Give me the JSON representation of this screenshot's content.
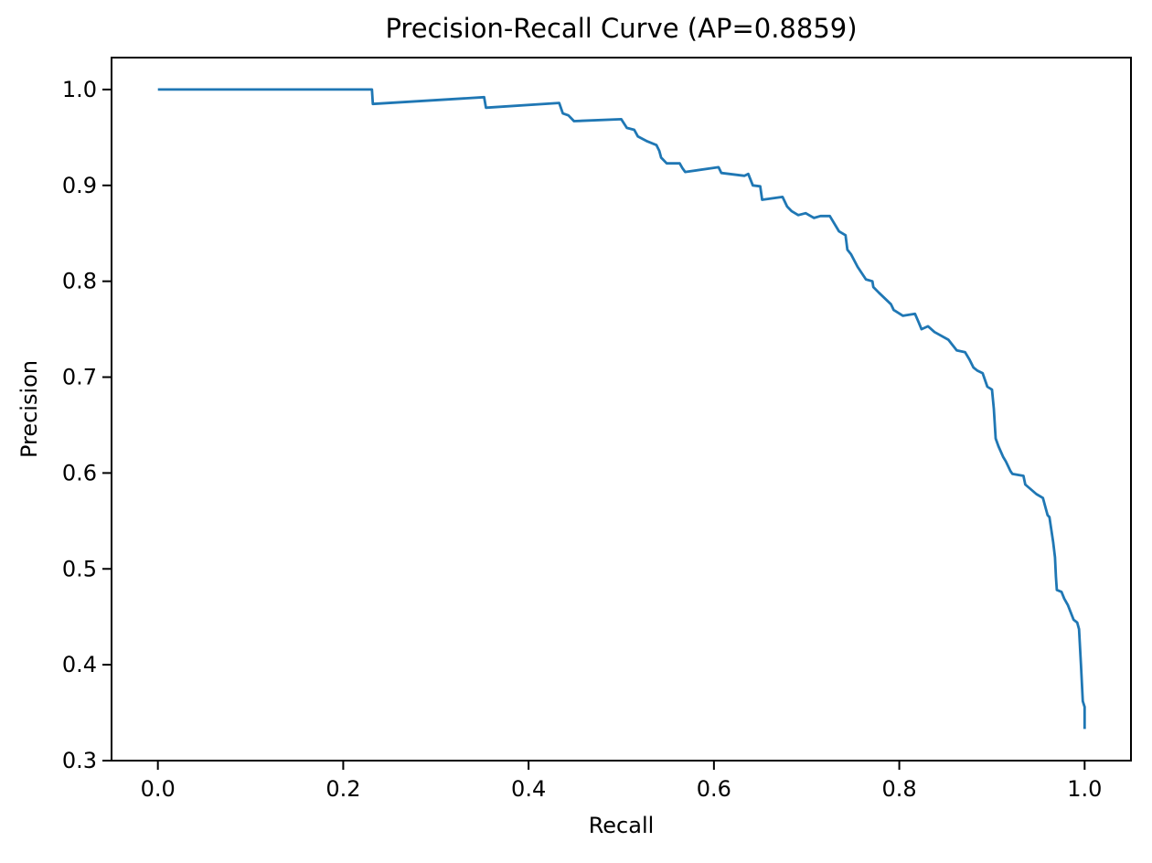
{
  "chart_data": {
    "type": "line",
    "title": "Precision-Recall Curve (AP=0.8859)",
    "xlabel": "Recall",
    "ylabel": "Precision",
    "ap_value": "0.8859",
    "xlim": [
      -0.05,
      1.05
    ],
    "ylim": [
      0.3,
      1.0333
    ],
    "xticks": [
      0.0,
      0.2,
      0.4,
      0.6,
      0.8,
      1.0
    ],
    "yticks": [
      0.3,
      0.4,
      0.5,
      0.6,
      0.7,
      0.8,
      0.9,
      1.0
    ],
    "grid": false,
    "legend_position": "none",
    "line_color": "#1f77b4",
    "frame_color": "#000000",
    "background_color": "#ffffff",
    "series": [
      {
        "name": "precision-recall-curve",
        "x": [
          0.0,
          0.231,
          0.232,
          0.352,
          0.354,
          0.433,
          0.437,
          0.443,
          0.449,
          0.5,
          0.506,
          0.514,
          0.518,
          0.528,
          0.538,
          0.541,
          0.543,
          0.549,
          0.563,
          0.566,
          0.569,
          0.605,
          0.608,
          0.633,
          0.637,
          0.642,
          0.65,
          0.652,
          0.674,
          0.679,
          0.684,
          0.691,
          0.699,
          0.708,
          0.715,
          0.725,
          0.735,
          0.742,
          0.744,
          0.748,
          0.755,
          0.764,
          0.771,
          0.772,
          0.778,
          0.791,
          0.794,
          0.804,
          0.817,
          0.821,
          0.824,
          0.831,
          0.838,
          0.853,
          0.857,
          0.862,
          0.871,
          0.876,
          0.88,
          0.884,
          0.89,
          0.895,
          0.9,
          0.902,
          0.904,
          0.907,
          0.912,
          0.915,
          0.92,
          0.922,
          0.934,
          0.936,
          0.948,
          0.955,
          0.96,
          0.962,
          0.966,
          0.968,
          0.969,
          0.97,
          0.975,
          0.978,
          0.982,
          0.988,
          0.992,
          0.994,
          0.996,
          0.998,
          1.0,
          1.0
        ],
        "y": [
          1.0,
          1.0,
          0.985,
          0.992,
          0.981,
          0.986,
          0.975,
          0.973,
          0.967,
          0.969,
          0.96,
          0.958,
          0.951,
          0.946,
          0.942,
          0.936,
          0.929,
          0.923,
          0.923,
          0.918,
          0.914,
          0.919,
          0.913,
          0.91,
          0.912,
          0.9,
          0.899,
          0.885,
          0.888,
          0.878,
          0.873,
          0.869,
          0.871,
          0.866,
          0.868,
          0.868,
          0.852,
          0.848,
          0.833,
          0.828,
          0.815,
          0.802,
          0.8,
          0.794,
          0.788,
          0.776,
          0.77,
          0.764,
          0.766,
          0.757,
          0.75,
          0.753,
          0.747,
          0.739,
          0.734,
          0.728,
          0.726,
          0.718,
          0.71,
          0.707,
          0.704,
          0.69,
          0.687,
          0.667,
          0.636,
          0.628,
          0.617,
          0.612,
          0.602,
          0.599,
          0.597,
          0.588,
          0.578,
          0.574,
          0.556,
          0.554,
          0.528,
          0.512,
          0.492,
          0.478,
          0.476,
          0.469,
          0.462,
          0.447,
          0.444,
          0.437,
          0.4,
          0.362,
          0.356,
          0.333
        ]
      }
    ]
  }
}
